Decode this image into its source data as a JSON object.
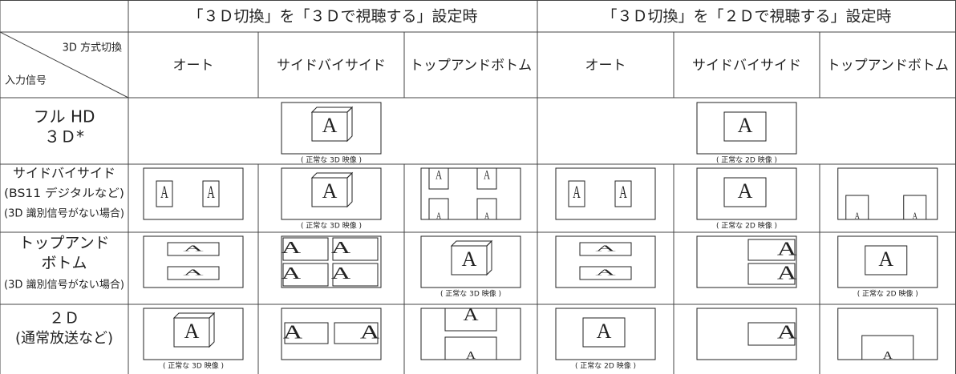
{
  "header": {
    "groups": [
      "「３Ｄ切換」を「３Ｄで視聴する」設定時",
      "「３Ｄ切換」を「２Ｄで視聴する」設定時"
    ],
    "corner": {
      "top": "3D 方式切換",
      "bottom": "入力信号"
    },
    "columns": [
      "オート",
      "サイドバイサイド",
      "トップアンドボトム",
      "オート",
      "サイドバイサイド",
      "トップアンドボトム"
    ]
  },
  "rows": [
    {
      "label": [
        "フル HD",
        "３Ｄ*"
      ]
    },
    {
      "label": [
        "サイドバイサイド",
        "(BS11 デジタルなど)",
        "(3D 識別信号がない場合)"
      ]
    },
    {
      "label": [
        "トップアンド",
        "ボトム",
        "(3D 識別信号がない場合)"
      ]
    },
    {
      "label": [
        "２Ｄ",
        "(通常放送など)"
      ]
    }
  ],
  "glyph": "A",
  "captions": [
    "( 正常な 3D 映像 )",
    "( 正常な 2D 映像 )"
  ]
}
